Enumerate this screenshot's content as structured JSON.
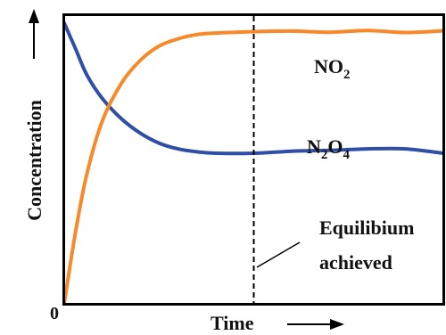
{
  "colors": {
    "no2": "#f7892a",
    "n2o4": "#2f4fa6",
    "axis": "#000000"
  },
  "chart_data": {
    "type": "line",
    "title": "",
    "xlabel": "Time",
    "ylabel": "Concentration",
    "origin_label": "0",
    "x_ticks_shown": false,
    "y_ticks_shown": false,
    "grid": false,
    "xlim": [
      0,
      1
    ],
    "ylim": [
      0,
      1
    ],
    "series": [
      {
        "name": "NO2",
        "label_base": "NO",
        "label_sub": "2",
        "color": "#f7892a",
        "points": [
          [
            0.0,
            0.0
          ],
          [
            0.03,
            0.25
          ],
          [
            0.06,
            0.45
          ],
          [
            0.1,
            0.63
          ],
          [
            0.15,
            0.76
          ],
          [
            0.2,
            0.84
          ],
          [
            0.25,
            0.89
          ],
          [
            0.3,
            0.915
          ],
          [
            0.35,
            0.93
          ],
          [
            0.4,
            0.935
          ],
          [
            0.5,
            0.94
          ],
          [
            0.6,
            0.942
          ],
          [
            0.7,
            0.938
          ],
          [
            0.8,
            0.944
          ],
          [
            0.9,
            0.937
          ],
          [
            1.0,
            0.943
          ]
        ]
      },
      {
        "name": "N2O4",
        "label_parts": [
          "N",
          "2",
          "O",
          "4"
        ],
        "color": "#2f4fa6",
        "points": [
          [
            0.0,
            0.97
          ],
          [
            0.03,
            0.88
          ],
          [
            0.06,
            0.79
          ],
          [
            0.1,
            0.71
          ],
          [
            0.15,
            0.64
          ],
          [
            0.2,
            0.59
          ],
          [
            0.25,
            0.555
          ],
          [
            0.3,
            0.535
          ],
          [
            0.35,
            0.525
          ],
          [
            0.4,
            0.52
          ],
          [
            0.5,
            0.52
          ],
          [
            0.6,
            0.527
          ],
          [
            0.7,
            0.53
          ],
          [
            0.8,
            0.535
          ],
          [
            0.9,
            0.535
          ],
          [
            1.0,
            0.52
          ]
        ]
      }
    ],
    "annotations": {
      "equilibrium_x": 0.5,
      "equilibrium_line_1": "Equilibium",
      "equilibrium_line_2": "achieved"
    }
  }
}
